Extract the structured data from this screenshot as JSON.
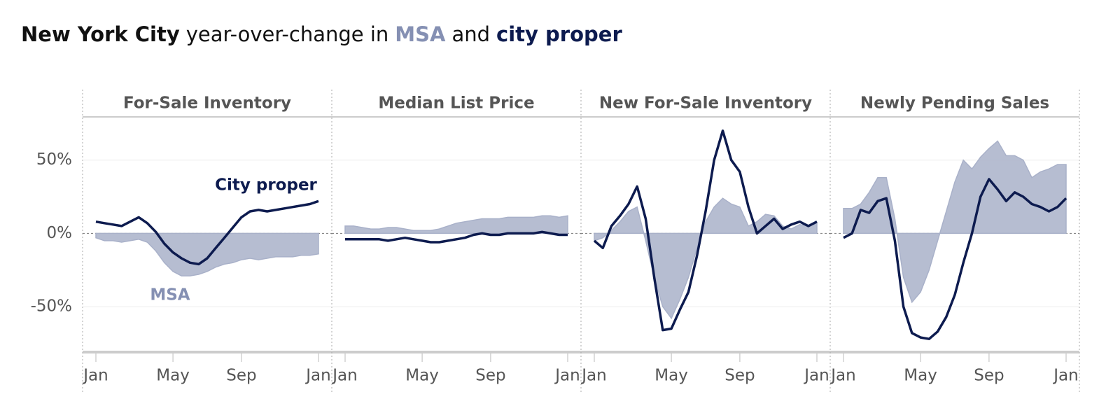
{
  "chart_data": {
    "type": "line",
    "title": [
      "New York City",
      "year-over-change in",
      "MSA",
      "and",
      "city proper"
    ],
    "categories": [
      "Jan",
      null,
      null,
      null,
      null,
      null,
      null,
      null,
      null,
      "May",
      null,
      null,
      null,
      null,
      null,
      null,
      null,
      "Sep",
      null,
      null,
      null,
      null,
      null,
      null,
      null,
      null,
      "Jan"
    ],
    "ylim": [
      -81,
      79
    ],
    "yticks": [
      {
        "value": -50,
        "label": "-50%"
      },
      {
        "value": 0,
        "label": "0%"
      },
      {
        "value": 50,
        "label": "50%"
      }
    ],
    "grid": true,
    "series": [
      {
        "name": "MSA",
        "color": "#a9b1c9",
        "fill": true
      },
      {
        "name": "City proper",
        "color": "#0d1b4f",
        "fill": false
      }
    ],
    "panels": [
      {
        "title": "For-Sale Inventory",
        "values": [
          [
            -3,
            -5,
            -5,
            -6,
            -5,
            -4,
            -6,
            -12,
            -20,
            -26,
            -29,
            -29,
            -28,
            -26,
            -23,
            -21,
            -20,
            -18,
            -17,
            -18,
            -17,
            -16,
            -16,
            -16,
            -15,
            -15,
            -14
          ],
          [
            8,
            7,
            6,
            5,
            8,
            11,
            7,
            1,
            -7,
            -13,
            -17,
            -20,
            -21,
            -17,
            -10,
            -3,
            4,
            11,
            15,
            16,
            15,
            16,
            17,
            18,
            19,
            20,
            22
          ]
        ]
      },
      {
        "title": "Median List Price",
        "values": [
          [
            5,
            5,
            4,
            3,
            3,
            4,
            4,
            3,
            2,
            2,
            2,
            3,
            5,
            7,
            8,
            9,
            10,
            10,
            10,
            11,
            11,
            11,
            11,
            12,
            12,
            11,
            12
          ],
          [
            -4,
            -4,
            -4,
            -4,
            -4,
            -5,
            -4,
            -3,
            -4,
            -5,
            -6,
            -6,
            -5,
            -4,
            -3,
            -1,
            0,
            -1,
            -1,
            0,
            0,
            0,
            0,
            1,
            0,
            -1,
            -1
          ]
        ]
      },
      {
        "title": "New For-Sale Inventory",
        "values": [
          [
            -5,
            -3,
            2,
            8,
            15,
            18,
            -5,
            -30,
            -50,
            -58,
            -45,
            -30,
            -10,
            8,
            18,
            24,
            20,
            18,
            5,
            8,
            13,
            12,
            5,
            3,
            6,
            5,
            7
          ],
          [
            -5,
            -10,
            5,
            12,
            20,
            32,
            10,
            -30,
            -66,
            -65,
            -52,
            -40,
            -15,
            15,
            50,
            70,
            50,
            42,
            18,
            0,
            5,
            10,
            3,
            6,
            8,
            5,
            8
          ]
        ]
      },
      {
        "title": "Newly Pending Sales",
        "values": [
          [
            17,
            17,
            20,
            28,
            38,
            38,
            10,
            -30,
            -47,
            -40,
            -25,
            -5,
            15,
            35,
            50,
            44,
            52,
            58,
            63,
            53,
            53,
            50,
            38,
            42,
            44,
            47,
            47
          ],
          [
            -3,
            0,
            16,
            14,
            22,
            24,
            -5,
            -50,
            -68,
            -71,
            -72,
            -67,
            -57,
            -42,
            -20,
            0,
            25,
            37,
            30,
            22,
            28,
            25,
            20,
            18,
            15,
            18,
            24
          ]
        ]
      }
    ]
  }
}
